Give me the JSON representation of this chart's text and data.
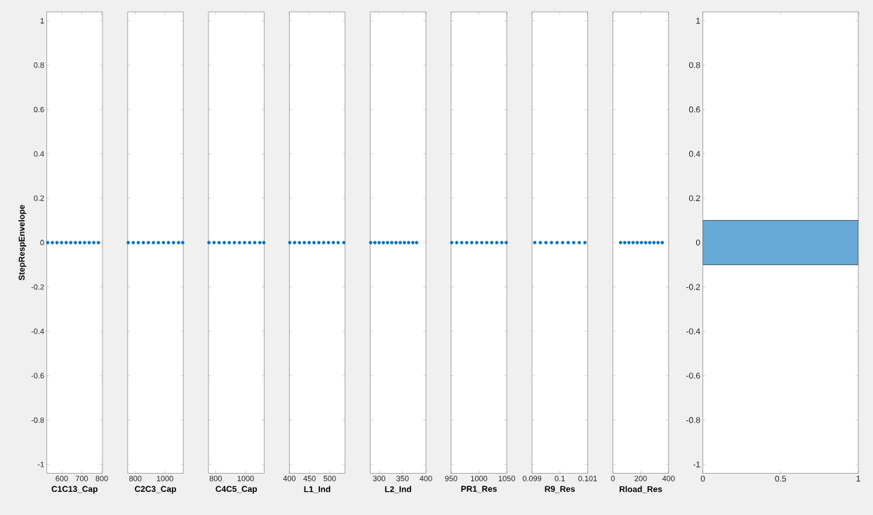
{
  "chart_data": [
    {
      "type": "scatter",
      "xlabel": "C1C13_Cap",
      "ylabel": "StepRespEnvelope",
      "x": [
        530,
        553,
        576,
        599,
        622,
        645,
        668,
        691,
        714,
        737,
        760,
        783
      ],
      "values": [
        0,
        0,
        0,
        0,
        0,
        0,
        0,
        0,
        0,
        0,
        0,
        0
      ],
      "color": "#0072bd",
      "marker": "circle",
      "xlim": [
        525,
        803
      ],
      "xticks": [
        600,
        700,
        800
      ],
      "ylim": [
        -1.04,
        1.04
      ],
      "yticks": [
        -1,
        -0.8,
        -0.6,
        -0.4,
        -0.2,
        0,
        0.2,
        0.4,
        0.6,
        0.8,
        1
      ]
    },
    {
      "type": "scatter",
      "xlabel": "C2C3_Cap",
      "x": [
        752,
        786,
        820,
        854,
        888,
        922,
        956,
        990,
        1024,
        1058,
        1092,
        1120
      ],
      "values": [
        0,
        0,
        0,
        0,
        0,
        0,
        0,
        0,
        0,
        0,
        0,
        0
      ],
      "color": "#0072bd",
      "marker": "circle",
      "xlim": [
        748,
        1124
      ],
      "xticks": [
        800,
        1000
      ],
      "ylim": [
        -1.04,
        1.04
      ],
      "yticks": [
        -1,
        -0.8,
        -0.6,
        -0.4,
        -0.2,
        0,
        0.2,
        0.4,
        0.6,
        0.8,
        1
      ],
      "tick_labels": "x"
    },
    {
      "type": "scatter",
      "xlabel": "C4C5_Cap",
      "x": [
        755,
        789,
        823,
        857,
        891,
        925,
        959,
        993,
        1027,
        1061,
        1095,
        1122
      ],
      "values": [
        0,
        0,
        0,
        0,
        0,
        0,
        0,
        0,
        0,
        0,
        0,
        0
      ],
      "color": "#0072bd",
      "marker": "circle",
      "xlim": [
        752,
        1124
      ],
      "xticks": [
        800,
        1000
      ],
      "ylim": [
        -1.04,
        1.04
      ],
      "yticks": [
        -1,
        -0.8,
        -0.6,
        -0.4,
        -0.2,
        0,
        0.2,
        0.4,
        0.6,
        0.8,
        1
      ],
      "tick_labels": "x"
    },
    {
      "type": "scatter",
      "xlabel": "L1_Ind",
      "x": [
        401,
        413,
        425,
        437,
        449,
        461,
        473,
        485,
        497,
        509,
        521,
        535
      ],
      "values": [
        0,
        0,
        0,
        0,
        0,
        0,
        0,
        0,
        0,
        0,
        0,
        0
      ],
      "color": "#0072bd",
      "marker": "circle",
      "xlim": [
        400,
        538
      ],
      "xticks": [
        400,
        450,
        500
      ],
      "ylim": [
        -1.04,
        1.04
      ],
      "yticks": [
        -1,
        -0.8,
        -0.6,
        -0.4,
        -0.2,
        0,
        0.2,
        0.4,
        0.6,
        0.8,
        1
      ],
      "tick_labels": "x"
    },
    {
      "type": "scatter",
      "xlabel": "L2_Ind",
      "x": [
        282,
        291,
        300,
        309,
        318,
        327,
        336,
        345,
        354,
        363,
        372,
        380
      ],
      "values": [
        0,
        0,
        0,
        0,
        0,
        0,
        0,
        0,
        0,
        0,
        0,
        0
      ],
      "color": "#0072bd",
      "marker": "circle",
      "xlim": [
        281,
        400
      ],
      "xticks": [
        300,
        350,
        400
      ],
      "ylim": [
        -1.04,
        1.04
      ],
      "yticks": [
        -1,
        -0.8,
        -0.6,
        -0.4,
        -0.2,
        0,
        0.2,
        0.4,
        0.6,
        0.8,
        1
      ],
      "tick_labels": "x"
    },
    {
      "type": "scatter",
      "xlabel": "PR1_Res",
      "x": [
        951,
        960,
        969,
        978,
        987,
        996,
        1005,
        1014,
        1023,
        1032,
        1041,
        1049
      ],
      "values": [
        0,
        0,
        0,
        0,
        0,
        0,
        0,
        0,
        0,
        0,
        0,
        0
      ],
      "color": "#0072bd",
      "marker": "circle",
      "xlim": [
        950,
        1050
      ],
      "xticks": [
        950,
        1000,
        1050
      ],
      "ylim": [
        -1.04,
        1.04
      ],
      "yticks": [
        -1,
        -0.8,
        -0.6,
        -0.4,
        -0.2,
        0,
        0.2,
        0.4,
        0.6,
        0.8,
        1
      ],
      "tick_labels": "x"
    },
    {
      "type": "scatter",
      "xlabel": "R9_Res",
      "x": [
        0.0991,
        0.0993,
        0.0995,
        0.0997,
        0.0999,
        0.1001,
        0.1003,
        0.1005,
        0.1007,
        0.1009
      ],
      "values": [
        0,
        0,
        0,
        0,
        0,
        0,
        0,
        0,
        0,
        0
      ],
      "color": "#0072bd",
      "marker": "circle",
      "xlim": [
        0.099,
        0.101
      ],
      "xticks": [
        0.099,
        0.1,
        0.101
      ],
      "ylim": [
        -1.04,
        1.04
      ],
      "yticks": [
        -1,
        -0.8,
        -0.6,
        -0.4,
        -0.2,
        0,
        0.2,
        0.4,
        0.6,
        0.8,
        1
      ],
      "tick_labels": "x"
    },
    {
      "type": "scatter",
      "xlabel": "Rload_Res",
      "x": [
        55,
        85,
        115,
        145,
        175,
        205,
        235,
        265,
        295,
        325,
        355
      ],
      "values": [
        0,
        0,
        0,
        0,
        0,
        0,
        0,
        0,
        0,
        0,
        0
      ],
      "color": "#0072bd",
      "marker": "circle",
      "xlim": [
        0,
        400
      ],
      "xticks": [
        0,
        200,
        400
      ],
      "ylim": [
        -1.04,
        1.04
      ],
      "yticks": [
        -1,
        -0.8,
        -0.6,
        -0.4,
        -0.2,
        0,
        0.2,
        0.4,
        0.6,
        0.8,
        1
      ],
      "tick_labels": "x"
    },
    {
      "type": "histogram",
      "orientation": "horizontal",
      "bins": [
        -0.1,
        0.1
      ],
      "values": [
        1
      ],
      "color": "#68aad7",
      "xlim": [
        0,
        1
      ],
      "xticks": [
        0,
        0.5,
        1
      ],
      "ylim": [
        -1.04,
        1.04
      ],
      "yticks": [
        -1,
        -0.8,
        -0.6,
        -0.4,
        -0.2,
        0,
        0.2,
        0.4,
        0.6,
        0.8,
        1
      ]
    }
  ]
}
